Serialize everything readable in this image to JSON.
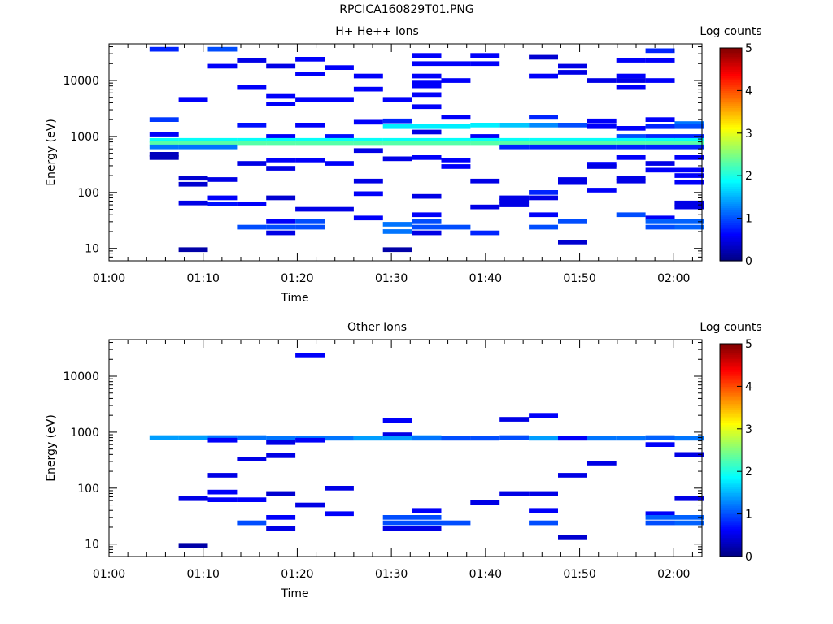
{
  "title": "RPCICA160829T01.PNG",
  "colors": {
    "bg": "#ffffff",
    "axis": "#000000"
  },
  "colorbar": {
    "label": "Log counts",
    "ticks": [
      "0",
      "1",
      "2",
      "3",
      "4",
      "5"
    ],
    "range": [
      0,
      5
    ]
  },
  "chart_data": [
    {
      "type": "heatmap",
      "title": "H+ He++ Ions",
      "xlabel": "Time",
      "ylabel": "Energy (eV)",
      "xlim": [
        "01:00",
        "02:03"
      ],
      "ylim": [
        6,
        45000
      ],
      "yscale": "log",
      "xticks": [
        "01:00",
        "01:10",
        "01:20",
        "01:30",
        "01:40",
        "01:50",
        "02:00"
      ],
      "yticks": [
        "10",
        "100",
        "1000",
        "10000"
      ],
      "colorbar_label": "Log counts",
      "colorbar_range": [
        0,
        5
      ],
      "time_bins": [
        1.2,
        4.3,
        7.4,
        10.5,
        13.6,
        16.7,
        19.8,
        22.9,
        26.0,
        29.1,
        32.2,
        35.3,
        38.4,
        41.5,
        44.6,
        47.7,
        50.8,
        53.9,
        57.0,
        60.1
      ],
      "cells": [
        [
          1,
          36000,
          0.8
        ],
        [
          1,
          2000,
          0.9
        ],
        [
          1,
          1100,
          0.6
        ],
        [
          1,
          850,
          1.9
        ],
        [
          1,
          750,
          2.3
        ],
        [
          1,
          650,
          1.2
        ],
        [
          1,
          480,
          0.3
        ],
        [
          1,
          420,
          0.3
        ],
        [
          2,
          4600,
          0.6
        ],
        [
          2,
          850,
          1.9
        ],
        [
          2,
          750,
          2.3
        ],
        [
          2,
          650,
          1.2
        ],
        [
          2,
          180,
          0.4
        ],
        [
          2,
          140,
          0.4
        ],
        [
          2,
          65,
          0.5
        ],
        [
          2,
          9.5,
          0.2
        ],
        [
          3,
          36000,
          1.0
        ],
        [
          3,
          18000,
          0.6
        ],
        [
          3,
          850,
          1.9
        ],
        [
          3,
          750,
          2.3
        ],
        [
          3,
          650,
          1.2
        ],
        [
          3,
          170,
          0.5
        ],
        [
          3,
          80,
          0.6
        ],
        [
          3,
          62,
          0.7
        ],
        [
          4,
          23000,
          0.5
        ],
        [
          4,
          7500,
          0.6
        ],
        [
          4,
          1600,
          0.7
        ],
        [
          4,
          850,
          1.9
        ],
        [
          4,
          750,
          2.3
        ],
        [
          4,
          330,
          0.5
        ],
        [
          4,
          62,
          0.6
        ],
        [
          4,
          24,
          1.0
        ],
        [
          5,
          18000,
          0.5
        ],
        [
          5,
          5200,
          0.6
        ],
        [
          5,
          3800,
          0.6
        ],
        [
          5,
          1000,
          0.6
        ],
        [
          5,
          850,
          1.9
        ],
        [
          5,
          750,
          2.3
        ],
        [
          5,
          380,
          0.6
        ],
        [
          5,
          270,
          0.5
        ],
        [
          5,
          80,
          0.4
        ],
        [
          5,
          30,
          0.6
        ],
        [
          5,
          24,
          1.0
        ],
        [
          5,
          19,
          0.5
        ],
        [
          6,
          24000,
          0.6
        ],
        [
          6,
          13000,
          0.6
        ],
        [
          6,
          4600,
          0.6
        ],
        [
          6,
          1600,
          0.6
        ],
        [
          6,
          850,
          1.9
        ],
        [
          6,
          750,
          2.3
        ],
        [
          6,
          380,
          0.6
        ],
        [
          6,
          50,
          0.5
        ],
        [
          6,
          30,
          1.0
        ],
        [
          6,
          24,
          1.0
        ],
        [
          7,
          17000,
          0.6
        ],
        [
          7,
          4600,
          0.6
        ],
        [
          7,
          1000,
          0.7
        ],
        [
          7,
          850,
          1.9
        ],
        [
          7,
          750,
          2.3
        ],
        [
          7,
          330,
          0.6
        ],
        [
          7,
          50,
          0.5
        ],
        [
          8,
          12000,
          0.6
        ],
        [
          8,
          7000,
          0.6
        ],
        [
          8,
          1800,
          0.6
        ],
        [
          8,
          850,
          1.9
        ],
        [
          8,
          750,
          2.3
        ],
        [
          8,
          560,
          0.5
        ],
        [
          8,
          160,
          0.5
        ],
        [
          8,
          95,
          0.6
        ],
        [
          8,
          35,
          0.6
        ],
        [
          9,
          4600,
          0.6
        ],
        [
          9,
          1900,
          0.8
        ],
        [
          9,
          1500,
          1.8
        ],
        [
          9,
          850,
          1.9
        ],
        [
          9,
          750,
          2.3
        ],
        [
          9,
          400,
          0.5
        ],
        [
          9,
          27,
          1.2
        ],
        [
          9,
          20,
          1.2
        ],
        [
          9,
          9.5,
          0.2
        ],
        [
          10,
          28000,
          0.6
        ],
        [
          10,
          20000,
          0.6
        ],
        [
          10,
          12000,
          0.6
        ],
        [
          10,
          9000,
          0.6
        ],
        [
          10,
          8000,
          0.6
        ],
        [
          10,
          5600,
          0.6
        ],
        [
          10,
          3400,
          0.6
        ],
        [
          10,
          1500,
          1.8
        ],
        [
          10,
          1200,
          0.5
        ],
        [
          10,
          850,
          1.9
        ],
        [
          10,
          750,
          2.3
        ],
        [
          10,
          420,
          0.6
        ],
        [
          10,
          85,
          0.5
        ],
        [
          10,
          40,
          0.6
        ],
        [
          10,
          30,
          1.0
        ],
        [
          10,
          24,
          1.0
        ],
        [
          10,
          19,
          0.5
        ],
        [
          11,
          20000,
          0.6
        ],
        [
          11,
          10000,
          0.6
        ],
        [
          11,
          2200,
          0.6
        ],
        [
          11,
          1500,
          1.8
        ],
        [
          11,
          850,
          1.9
        ],
        [
          11,
          750,
          2.3
        ],
        [
          11,
          380,
          0.6
        ],
        [
          11,
          290,
          0.6
        ],
        [
          11,
          24,
          1.0
        ],
        [
          12,
          28000,
          0.6
        ],
        [
          12,
          20000,
          0.6
        ],
        [
          12,
          1600,
          1.8
        ],
        [
          12,
          1000,
          0.6
        ],
        [
          12,
          850,
          1.9
        ],
        [
          12,
          750,
          2.3
        ],
        [
          12,
          160,
          0.5
        ],
        [
          12,
          55,
          0.5
        ],
        [
          12,
          19,
          0.8
        ],
        [
          13,
          1600,
          1.6
        ],
        [
          13,
          850,
          1.9
        ],
        [
          13,
          750,
          2.3
        ],
        [
          13,
          650,
          0.8
        ],
        [
          13,
          80,
          0.5
        ],
        [
          13,
          70,
          0.5
        ],
        [
          13,
          60,
          0.5
        ],
        [
          14,
          26000,
          0.4
        ],
        [
          14,
          12000,
          0.6
        ],
        [
          14,
          2200,
          0.8
        ],
        [
          14,
          1600,
          1.3
        ],
        [
          14,
          850,
          1.9
        ],
        [
          14,
          750,
          2.3
        ],
        [
          14,
          650,
          0.8
        ],
        [
          14,
          100,
          0.8
        ],
        [
          14,
          80,
          0.5
        ],
        [
          14,
          40,
          0.6
        ],
        [
          14,
          24,
          1.0
        ],
        [
          15,
          18000,
          0.5
        ],
        [
          15,
          14000,
          0.5
        ],
        [
          15,
          1600,
          1.0
        ],
        [
          15,
          850,
          1.9
        ],
        [
          15,
          750,
          2.3
        ],
        [
          15,
          650,
          0.8
        ],
        [
          15,
          170,
          0.5
        ],
        [
          15,
          150,
          0.5
        ],
        [
          15,
          30,
          1.0
        ],
        [
          15,
          13,
          0.4
        ],
        [
          16,
          10000,
          0.5
        ],
        [
          16,
          1900,
          0.6
        ],
        [
          16,
          1500,
          0.6
        ],
        [
          16,
          850,
          1.9
        ],
        [
          16,
          750,
          2.3
        ],
        [
          16,
          650,
          0.8
        ],
        [
          16,
          320,
          0.6
        ],
        [
          16,
          290,
          0.5
        ],
        [
          16,
          110,
          0.6
        ],
        [
          17,
          23000,
          0.6
        ],
        [
          17,
          12000,
          0.6
        ],
        [
          17,
          10000,
          0.5
        ],
        [
          17,
          7500,
          0.6
        ],
        [
          17,
          1400,
          0.6
        ],
        [
          17,
          1000,
          1.0
        ],
        [
          17,
          850,
          1.9
        ],
        [
          17,
          750,
          2.3
        ],
        [
          17,
          650,
          0.8
        ],
        [
          17,
          420,
          0.6
        ],
        [
          17,
          180,
          0.5
        ],
        [
          17,
          160,
          0.5
        ],
        [
          17,
          40,
          1.0
        ],
        [
          18,
          34000,
          0.8
        ],
        [
          18,
          23000,
          0.6
        ],
        [
          18,
          10000,
          0.6
        ],
        [
          18,
          2000,
          0.6
        ],
        [
          18,
          1500,
          0.8
        ],
        [
          18,
          1000,
          0.8
        ],
        [
          18,
          850,
          1.9
        ],
        [
          18,
          750,
          2.3
        ],
        [
          18,
          650,
          0.8
        ],
        [
          18,
          330,
          0.5
        ],
        [
          18,
          250,
          0.6
        ],
        [
          18,
          35,
          0.6
        ],
        [
          18,
          30,
          1.1
        ],
        [
          18,
          24,
          1.0
        ],
        [
          19,
          1700,
          1.2
        ],
        [
          19,
          1500,
          1.0
        ],
        [
          19,
          1000,
          0.8
        ],
        [
          19,
          850,
          1.9
        ],
        [
          19,
          750,
          2.3
        ],
        [
          19,
          650,
          0.8
        ],
        [
          19,
          420,
          0.6
        ],
        [
          19,
          250,
          0.6
        ],
        [
          19,
          200,
          0.6
        ],
        [
          19,
          150,
          0.6
        ],
        [
          19,
          65,
          0.5
        ],
        [
          19,
          55,
          0.5
        ],
        [
          19,
          30,
          1.1
        ],
        [
          19,
          24,
          1.1
        ]
      ]
    },
    {
      "type": "heatmap",
      "title": "Other Ions",
      "xlabel": "Time",
      "ylabel": "Energy (eV)",
      "xlim": [
        "01:00",
        "02:03"
      ],
      "ylim": [
        6,
        45000
      ],
      "yscale": "log",
      "xticks": [
        "01:00",
        "01:10",
        "01:20",
        "01:30",
        "01:40",
        "01:50",
        "02:00"
      ],
      "yticks": [
        "10",
        "100",
        "1000",
        "10000"
      ],
      "colorbar_label": "Log counts",
      "colorbar_range": [
        0,
        5
      ],
      "time_bins": [
        1.2,
        4.3,
        7.4,
        10.5,
        13.6,
        16.7,
        19.8,
        22.9,
        26.0,
        29.1,
        32.2,
        35.3,
        38.4,
        41.5,
        44.6,
        47.7,
        50.8,
        53.9,
        57.0,
        60.1
      ],
      "cells": [
        [
          1,
          800,
          1.4
        ],
        [
          2,
          800,
          1.4
        ],
        [
          2,
          65,
          0.5
        ],
        [
          2,
          9.5,
          0.2
        ],
        [
          3,
          800,
          1.2
        ],
        [
          3,
          720,
          0.6
        ],
        [
          3,
          170,
          0.5
        ],
        [
          3,
          85,
          0.6
        ],
        [
          3,
          62,
          0.6
        ],
        [
          4,
          800,
          1.2
        ],
        [
          4,
          330,
          0.5
        ],
        [
          4,
          62,
          0.6
        ],
        [
          4,
          24,
          1.0
        ],
        [
          5,
          780,
          1.2
        ],
        [
          5,
          650,
          0.5
        ],
        [
          5,
          380,
          0.5
        ],
        [
          5,
          80,
          0.4
        ],
        [
          5,
          30,
          0.6
        ],
        [
          5,
          19,
          0.5
        ],
        [
          6,
          24000,
          0.6
        ],
        [
          6,
          780,
          1.2
        ],
        [
          6,
          720,
          0.6
        ],
        [
          6,
          50,
          0.5
        ],
        [
          7,
          780,
          1.2
        ],
        [
          7,
          100,
          0.5
        ],
        [
          7,
          35,
          0.6
        ],
        [
          8,
          780,
          1.4
        ],
        [
          9,
          1600,
          0.6
        ],
        [
          9,
          900,
          0.5
        ],
        [
          9,
          780,
          1.4
        ],
        [
          9,
          30,
          1.0
        ],
        [
          9,
          24,
          1.0
        ],
        [
          9,
          19,
          0.5
        ],
        [
          10,
          800,
          1.4
        ],
        [
          10,
          780,
          1.2
        ],
        [
          10,
          40,
          0.6
        ],
        [
          10,
          30,
          1.0
        ],
        [
          10,
          24,
          1.0
        ],
        [
          10,
          19,
          0.5
        ],
        [
          11,
          780,
          1.0
        ],
        [
          11,
          24,
          1.0
        ],
        [
          12,
          780,
          1.0
        ],
        [
          12,
          55,
          0.5
        ],
        [
          13,
          1700,
          0.5
        ],
        [
          13,
          800,
          1.0
        ],
        [
          13,
          80,
          0.5
        ],
        [
          14,
          2000,
          0.6
        ],
        [
          14,
          780,
          1.4
        ],
        [
          14,
          80,
          0.5
        ],
        [
          14,
          40,
          0.6
        ],
        [
          14,
          24,
          1.0
        ],
        [
          15,
          780,
          0.6
        ],
        [
          15,
          170,
          0.5
        ],
        [
          15,
          13,
          0.4
        ],
        [
          16,
          780,
          1.2
        ],
        [
          16,
          280,
          0.5
        ],
        [
          17,
          780,
          1.2
        ],
        [
          18,
          800,
          1.1
        ],
        [
          18,
          600,
          0.6
        ],
        [
          18,
          35,
          0.6
        ],
        [
          18,
          30,
          1.1
        ],
        [
          18,
          24,
          1.0
        ],
        [
          19,
          780,
          1.2
        ],
        [
          19,
          400,
          0.5
        ],
        [
          19,
          65,
          0.5
        ],
        [
          19,
          30,
          1.1
        ],
        [
          19,
          24,
          1.1
        ]
      ]
    }
  ]
}
